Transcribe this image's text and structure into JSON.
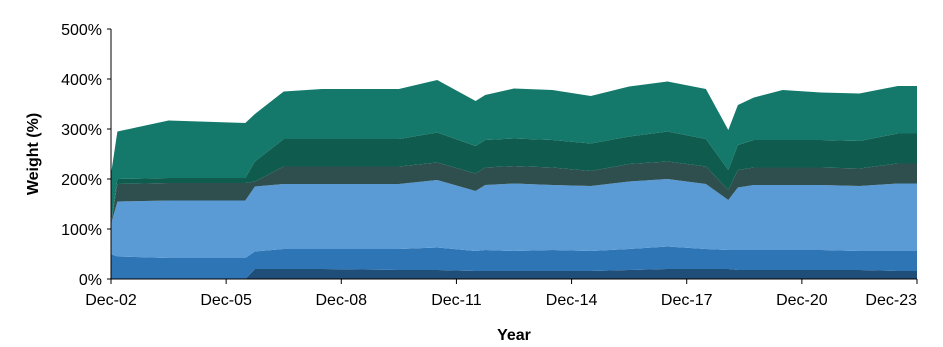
{
  "chart_data": {
    "type": "area",
    "stacked": true,
    "title": "",
    "xlabel": "Year",
    "ylabel": "Weight (%)",
    "ylim": [
      0,
      500
    ],
    "xlim": [
      "2002-12",
      "2023-12"
    ],
    "x_ticks": [
      "Dec-02",
      "Dec-05",
      "Dec-08",
      "Dec-11",
      "Dec-14",
      "Dec-17",
      "Dec-20",
      "Dec-23"
    ],
    "y_ticks": [
      "0%",
      "100%",
      "200%",
      "300%",
      "400%",
      "500%"
    ],
    "y_tick_values": [
      0,
      100,
      200,
      300,
      400,
      500
    ],
    "grid": false,
    "legend": "none",
    "x": [
      "2002-12",
      "2003-02",
      "2004-06",
      "2006-06",
      "2006-09",
      "2007-06",
      "2008-06",
      "2010-06",
      "2011-06",
      "2012-06",
      "2012-09",
      "2013-06",
      "2014-06",
      "2015-06",
      "2016-06",
      "2017-06",
      "2018-06",
      "2019-01",
      "2019-04",
      "2019-09",
      "2020-06",
      "2021-06",
      "2022-06",
      "2023-06",
      "2023-12"
    ],
    "series": [
      {
        "color": "#1F4E79",
        "values": [
          0,
          0,
          0,
          0,
          20,
          20,
          20,
          18,
          18,
          16,
          16,
          16,
          16,
          16,
          18,
          20,
          20,
          20,
          18,
          18,
          18,
          18,
          18,
          16,
          16
        ]
      },
      {
        "color": "#2E75B6",
        "values": [
          50,
          45,
          42,
          42,
          35,
          40,
          40,
          42,
          45,
          40,
          42,
          40,
          42,
          40,
          42,
          45,
          40,
          38,
          40,
          40,
          40,
          40,
          38,
          40,
          40
        ]
      },
      {
        "color": "#5B9BD5",
        "values": [
          60,
          110,
          115,
          115,
          130,
          130,
          130,
          130,
          135,
          120,
          130,
          135,
          130,
          130,
          135,
          135,
          130,
          100,
          125,
          130,
          130,
          130,
          130,
          135,
          135
        ]
      },
      {
        "color": "#2F4F4F",
        "values": [
          0,
          35,
          35,
          35,
          10,
          35,
          35,
          35,
          35,
          35,
          35,
          35,
          35,
          30,
          35,
          35,
          35,
          20,
          35,
          35,
          35,
          35,
          35,
          40,
          40
        ]
      },
      {
        "color": "#0F5C4F",
        "values": [
          0,
          10,
          10,
          10,
          40,
          55,
          55,
          55,
          60,
          55,
          55,
          55,
          55,
          55,
          55,
          60,
          55,
          40,
          50,
          55,
          55,
          55,
          55,
          60,
          60
        ]
      },
      {
        "color": "#14796B",
        "values": [
          100,
          95,
          115,
          110,
          95,
          95,
          100,
          100,
          105,
          90,
          90,
          100,
          100,
          95,
          100,
          100,
          100,
          80,
          80,
          85,
          100,
          95,
          95,
          95,
          95
        ]
      }
    ]
  }
}
